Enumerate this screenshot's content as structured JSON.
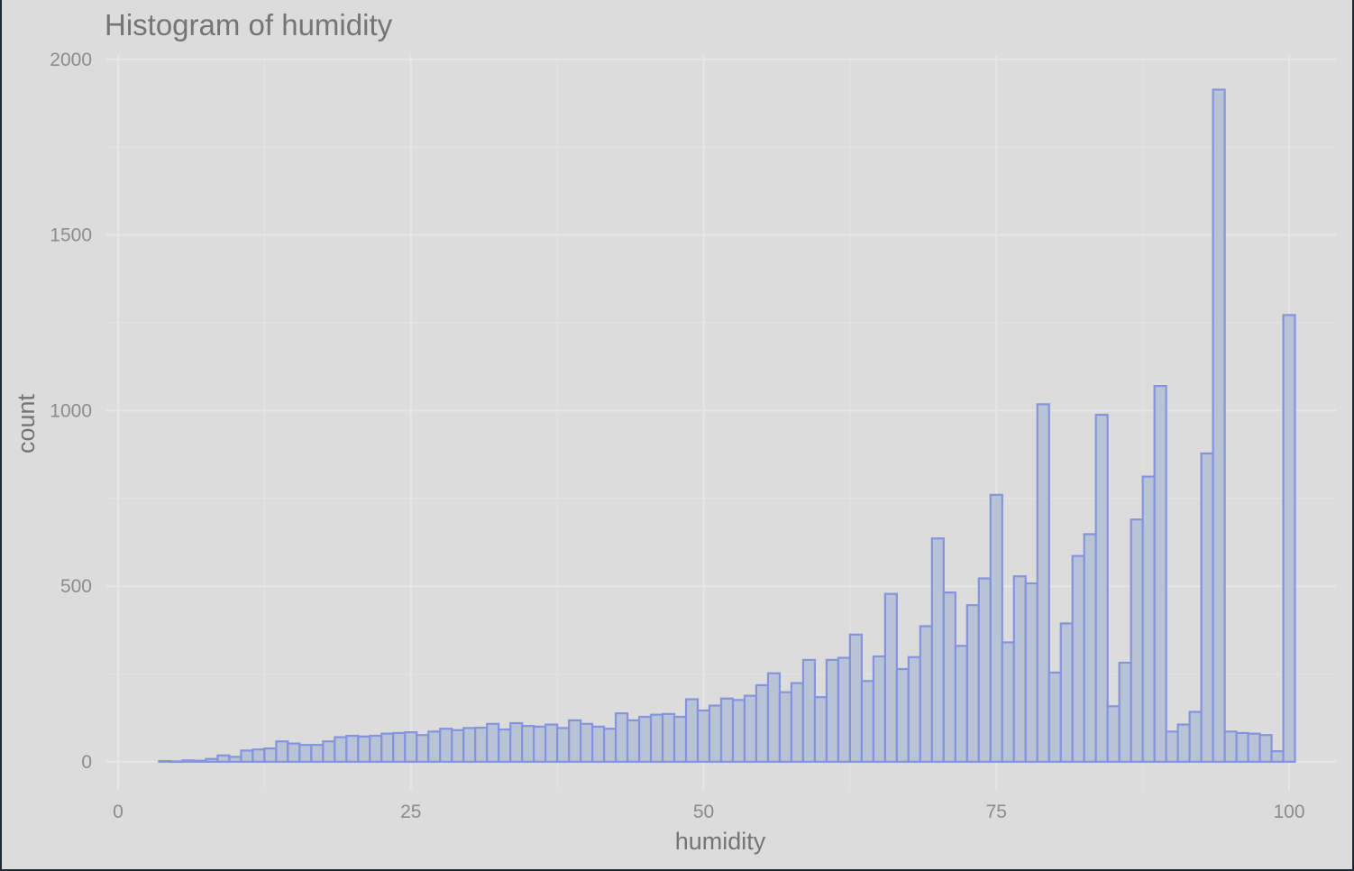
{
  "chart_data": {
    "type": "bar",
    "title": "Histogram of humidity",
    "xlabel": "humidity",
    "ylabel": "count",
    "xlim": [
      -1,
      104
    ],
    "ylim": [
      -80,
      2010
    ],
    "x_ticks": [
      0,
      25,
      50,
      75,
      100
    ],
    "y_ticks": [
      0,
      500,
      1000,
      1500,
      2000
    ],
    "grid": true,
    "bin_width": 1,
    "bin_centers": [
      4,
      5,
      6,
      7,
      8,
      9,
      10,
      11,
      12,
      13,
      14,
      15,
      16,
      17,
      18,
      19,
      20,
      21,
      22,
      23,
      24,
      25,
      26,
      27,
      28,
      29,
      30,
      31,
      32,
      33,
      34,
      35,
      36,
      37,
      38,
      39,
      40,
      41,
      42,
      43,
      44,
      45,
      46,
      47,
      48,
      49,
      50,
      51,
      52,
      53,
      54,
      55,
      56,
      57,
      58,
      59,
      60,
      61,
      62,
      63,
      64,
      65,
      66,
      67,
      68,
      69,
      70,
      71,
      72,
      73,
      74,
      75,
      76,
      77,
      78,
      79,
      80,
      81,
      82,
      83,
      84,
      85,
      86,
      87,
      88,
      89,
      90,
      91,
      92,
      93,
      94,
      95,
      96,
      97,
      98,
      99,
      100
    ],
    "counts": [
      2,
      1,
      4,
      3,
      8,
      18,
      14,
      32,
      35,
      38,
      58,
      52,
      48,
      48,
      58,
      70,
      74,
      72,
      74,
      80,
      82,
      84,
      76,
      86,
      94,
      90,
      96,
      97,
      108,
      92,
      110,
      102,
      100,
      106,
      96,
      118,
      108,
      100,
      94,
      138,
      118,
      128,
      134,
      136,
      128,
      178,
      146,
      160,
      180,
      176,
      188,
      218,
      252,
      198,
      224,
      290,
      184,
      290,
      296,
      362,
      230,
      300,
      478,
      264,
      298,
      386,
      636,
      482,
      330,
      446,
      522,
      760,
      340,
      528,
      508,
      1018,
      254,
      394,
      586,
      648,
      988,
      158,
      282,
      690,
      812,
      1070,
      86,
      106,
      142,
      878,
      1914,
      86,
      82,
      80,
      76,
      30,
      1272
    ]
  }
}
